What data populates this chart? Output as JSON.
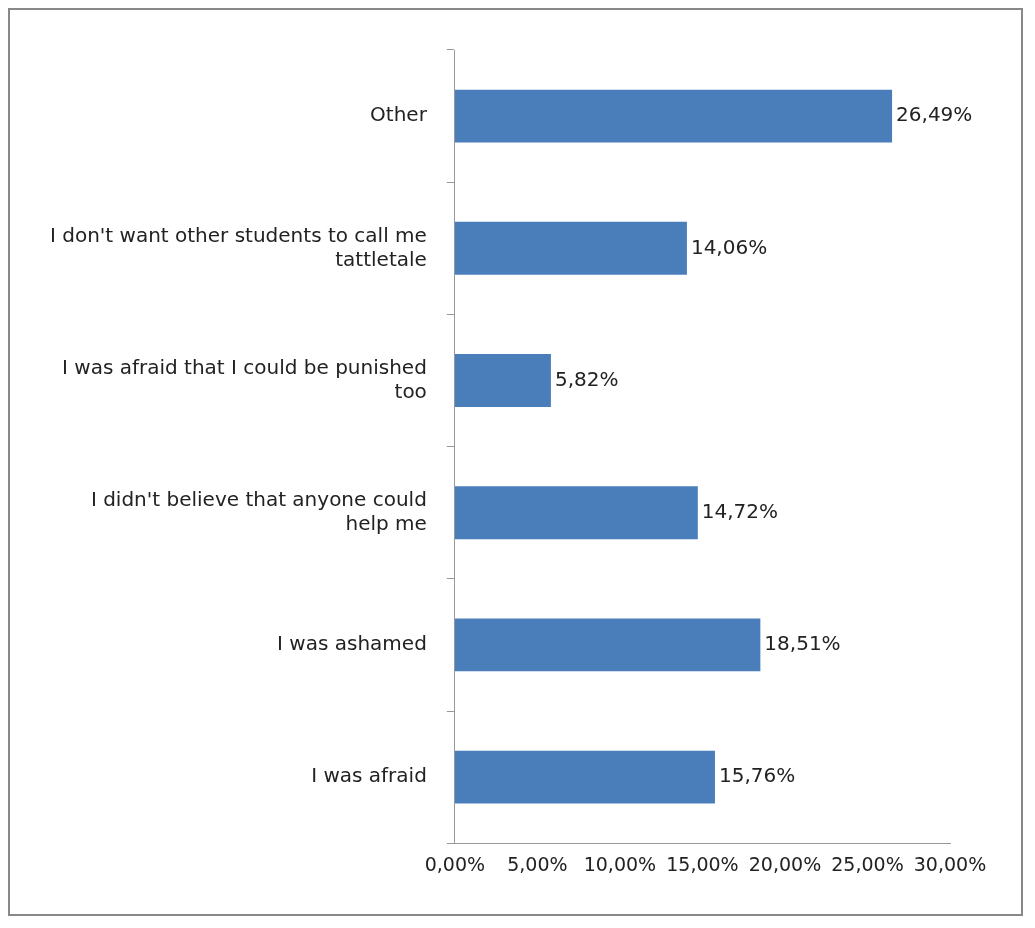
{
  "chart_data": {
    "type": "bar",
    "orientation": "horizontal",
    "categories": [
      "Other",
      "I don't want other students to call me tattletale",
      "I was afraid that I could be punished too",
      "I didn't believe that anyone could help me",
      "I was ashamed",
      "I was afraid"
    ],
    "values": [
      26.49,
      14.06,
      5.82,
      14.72,
      18.51,
      15.76
    ],
    "value_labels": [
      "26,49%",
      "14,06%",
      "5,82%",
      "14,72%",
      "18,51%",
      "15,76%"
    ],
    "color": "#4a7ebb",
    "xlim": [
      0,
      30
    ],
    "xticks": [
      {
        "value": 0,
        "label": "0,00%"
      },
      {
        "value": 5,
        "label": "5,00%"
      },
      {
        "value": 10,
        "label": "10,00%"
      },
      {
        "value": 15,
        "label": "15,00%"
      },
      {
        "value": 20,
        "label": "20,00%"
      },
      {
        "value": 25,
        "label": "25,00%"
      },
      {
        "value": 30,
        "label": "30,00%"
      }
    ],
    "grid": false,
    "legend": false
  }
}
